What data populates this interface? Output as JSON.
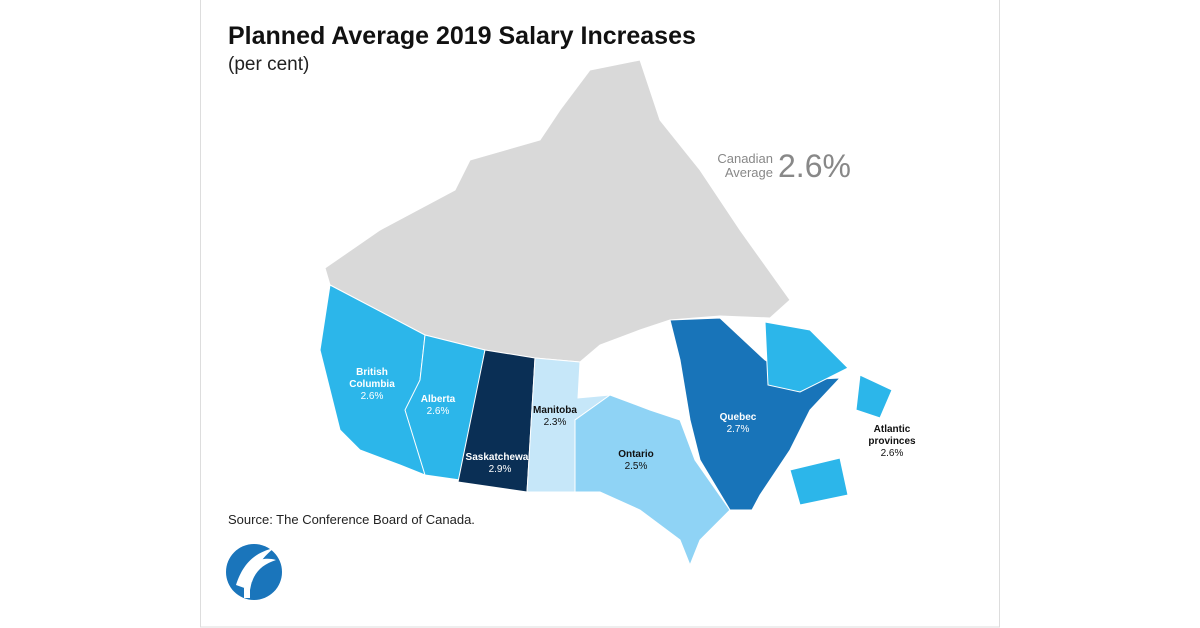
{
  "header": {
    "title": "Planned Average 2019 Salary Increases",
    "subtitle": "(per cent)"
  },
  "average": {
    "label_lines": [
      "Canadian",
      "Average"
    ],
    "value": 2.6,
    "value_label": "2.6%"
  },
  "regions": [
    {
      "name_lines": [
        "British",
        "Columbia"
      ],
      "value": 2.6,
      "value_label": "2.6%",
      "color": "#2cb6ea"
    },
    {
      "name_lines": [
        "Alberta"
      ],
      "value": 2.6,
      "value_label": "2.6%",
      "color": "#2cb6ea"
    },
    {
      "name_lines": [
        "Saskatchewan"
      ],
      "value": 2.9,
      "value_label": "2.9%",
      "color": "#0a2f55"
    },
    {
      "name_lines": [
        "Manitoba"
      ],
      "value": 2.3,
      "value_label": "2.3%",
      "color": "#c6e7f9"
    },
    {
      "name_lines": [
        "Ontario"
      ],
      "value": 2.5,
      "value_label": "2.5%",
      "color": "#8fd3f5"
    },
    {
      "name_lines": [
        "Quebec"
      ],
      "value": 2.7,
      "value_label": "2.7%",
      "color": "#1874b9"
    },
    {
      "name_lines": [
        "Atlantic",
        "provinces"
      ],
      "value": 2.6,
      "value_label": "2.6%",
      "color": "#2cb6ea"
    }
  ],
  "source": "Source: The Conference Board of Canada."
}
